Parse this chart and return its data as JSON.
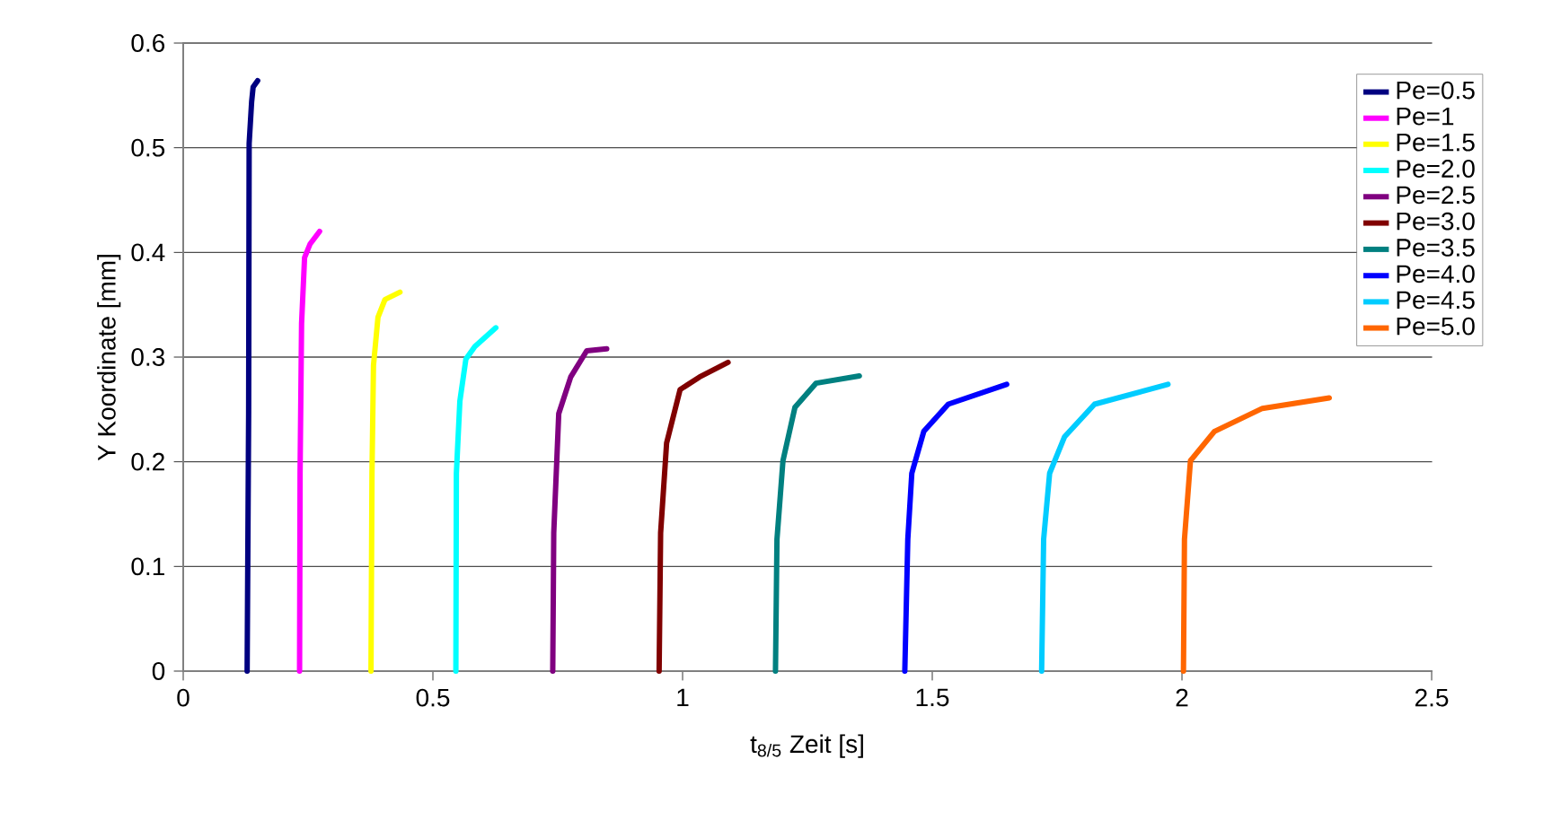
{
  "chart_data": {
    "type": "line",
    "xlabel": "t$_{8/5}$ Zeit [s]",
    "ylabel": "Y Koordinate [mm]",
    "xlim": [
      0,
      2.5
    ],
    "xticks": [
      0,
      0.5,
      1,
      1.5,
      2,
      2.5
    ],
    "ylim": [
      0,
      0.6
    ],
    "yticks": [
      0,
      0.1,
      0.2,
      0.3,
      0.4,
      0.5,
      0.6
    ],
    "grid": "y",
    "legend": "right",
    "marker": "none",
    "line_style": "solid",
    "series": [
      {
        "name": "Pe=0.5",
        "color": "#000080",
        "x": [
          0.128,
          0.131,
          0.132,
          0.137,
          0.14,
          0.149
        ],
        "values": [
          0,
          0.246,
          0.504,
          0.544,
          0.558,
          0.564
        ]
      },
      {
        "name": "Pe=1",
        "color": "#ff00ff",
        "x": [
          0.233,
          0.234,
          0.237,
          0.243,
          0.254,
          0.273
        ],
        "values": [
          0,
          0.189,
          0.332,
          0.395,
          0.408,
          0.42
        ]
      },
      {
        "name": "Pe=1.5",
        "color": "#ffff00",
        "x": [
          0.376,
          0.378,
          0.381,
          0.39,
          0.404,
          0.434
        ],
        "values": [
          0,
          0.189,
          0.292,
          0.338,
          0.355,
          0.362
        ]
      },
      {
        "name": "Pe=2.0",
        "color": "#00ffff",
        "x": [
          0.546,
          0.547,
          0.554,
          0.566,
          0.584,
          0.626
        ],
        "values": [
          0,
          0.189,
          0.258,
          0.298,
          0.31,
          0.328
        ]
      },
      {
        "name": "Pe=2.5",
        "color": "#800080",
        "x": [
          0.74,
          0.742,
          0.752,
          0.776,
          0.808,
          0.848
        ],
        "values": [
          0,
          0.132,
          0.246,
          0.281,
          0.306,
          0.308
        ]
      },
      {
        "name": "Pe=3.0",
        "color": "#800000",
        "x": [
          0.953,
          0.956,
          0.968,
          0.995,
          1.034,
          1.091
        ],
        "values": [
          0,
          0.132,
          0.218,
          0.269,
          0.281,
          0.295
        ]
      },
      {
        "name": "Pe=3.5",
        "color": "#008080",
        "x": [
          1.186,
          1.189,
          1.201,
          1.225,
          1.267,
          1.354
        ],
        "values": [
          0,
          0.126,
          0.201,
          0.252,
          0.275,
          0.282
        ]
      },
      {
        "name": "Pe=4.0",
        "color": "#0000ff",
        "x": [
          1.445,
          1.451,
          1.459,
          1.483,
          1.532,
          1.649
        ],
        "values": [
          0,
          0.126,
          0.189,
          0.229,
          0.255,
          0.274
        ]
      },
      {
        "name": "Pe=4.5",
        "color": "#00ccff",
        "x": [
          1.719,
          1.723,
          1.735,
          1.765,
          1.825,
          1.972
        ],
        "values": [
          0,
          0.126,
          0.189,
          0.224,
          0.255,
          0.274
        ]
      },
      {
        "name": "Pe=5.0",
        "color": "#ff6600",
        "x": [
          2.003,
          2.005,
          2.017,
          2.065,
          2.161,
          2.295
        ],
        "values": [
          0,
          0.126,
          0.201,
          0.229,
          0.251,
          0.261
        ]
      }
    ]
  }
}
